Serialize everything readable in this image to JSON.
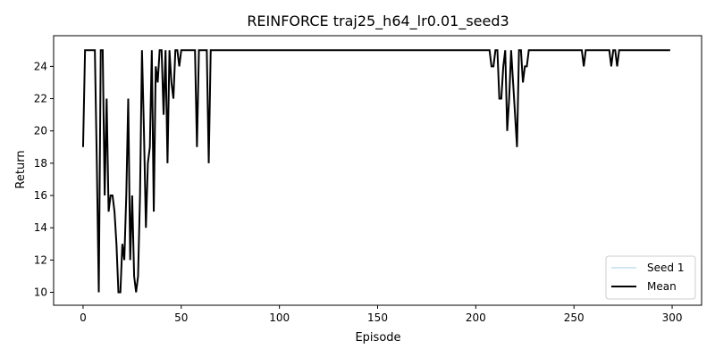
{
  "chart_data": {
    "type": "line",
    "title": "REINFORCE traj25_h64_lr0.01_seed3",
    "xlabel": "Episode",
    "ylabel": "Return",
    "xlim": [
      -15,
      315
    ],
    "ylim": [
      9.2,
      25.9
    ],
    "xticks": [
      0,
      50,
      100,
      150,
      200,
      250,
      300
    ],
    "yticks": [
      10,
      12,
      14,
      16,
      18,
      20,
      22,
      24
    ],
    "grid": false,
    "legend_position": "lower-right",
    "series": [
      {
        "name": "Seed 1",
        "color": "#a6cee3",
        "linewidth": 1
      },
      {
        "name": "Mean",
        "color": "#000000",
        "linewidth": 2
      }
    ],
    "keypoints": [
      [
        0,
        19
      ],
      [
        1,
        25
      ],
      [
        2,
        25
      ],
      [
        3,
        25
      ],
      [
        4,
        25
      ],
      [
        5,
        25
      ],
      [
        6,
        25
      ],
      [
        7,
        18
      ],
      [
        8,
        10
      ],
      [
        9,
        25
      ],
      [
        10,
        25
      ],
      [
        11,
        16
      ],
      [
        12,
        22
      ],
      [
        13,
        15
      ],
      [
        14,
        16
      ],
      [
        15,
        16
      ],
      [
        16,
        15
      ],
      [
        17,
        13
      ],
      [
        18,
        10
      ],
      [
        19,
        10
      ],
      [
        20,
        13
      ],
      [
        21,
        12
      ],
      [
        22,
        16
      ],
      [
        23,
        22
      ],
      [
        24,
        12
      ],
      [
        25,
        16
      ],
      [
        26,
        11
      ],
      [
        27,
        10
      ],
      [
        28,
        11
      ],
      [
        29,
        16
      ],
      [
        30,
        25
      ],
      [
        31,
        20
      ],
      [
        32,
        14
      ],
      [
        33,
        18
      ],
      [
        34,
        19
      ],
      [
        35,
        25
      ],
      [
        36,
        15
      ],
      [
        37,
        24
      ],
      [
        38,
        23
      ],
      [
        39,
        25
      ],
      [
        40,
        25
      ],
      [
        41,
        21
      ],
      [
        42,
        25
      ],
      [
        43,
        18
      ],
      [
        44,
        25
      ],
      [
        45,
        23
      ],
      [
        46,
        22
      ],
      [
        47,
        25
      ],
      [
        48,
        25
      ],
      [
        49,
        24
      ],
      [
        50,
        25
      ],
      [
        57,
        25
      ],
      [
        58,
        19
      ],
      [
        59,
        25
      ],
      [
        63,
        25
      ],
      [
        64,
        18
      ],
      [
        65,
        25
      ],
      [
        207,
        25
      ],
      [
        208,
        24
      ],
      [
        209,
        24
      ],
      [
        210,
        25
      ],
      [
        211,
        25
      ],
      [
        212,
        22
      ],
      [
        213,
        22
      ],
      [
        214,
        24
      ],
      [
        215,
        25
      ],
      [
        216,
        20
      ],
      [
        217,
        22
      ],
      [
        218,
        25
      ],
      [
        219,
        23
      ],
      [
        220,
        21
      ],
      [
        221,
        19
      ],
      [
        222,
        25
      ],
      [
        223,
        25
      ],
      [
        224,
        23
      ],
      [
        225,
        24
      ],
      [
        226,
        24
      ],
      [
        227,
        25
      ],
      [
        254,
        25
      ],
      [
        255,
        24
      ],
      [
        256,
        25
      ],
      [
        268,
        25
      ],
      [
        269,
        24
      ],
      [
        270,
        25
      ],
      [
        271,
        25
      ],
      [
        272,
        24
      ],
      [
        273,
        25
      ],
      [
        299,
        25
      ]
    ]
  }
}
